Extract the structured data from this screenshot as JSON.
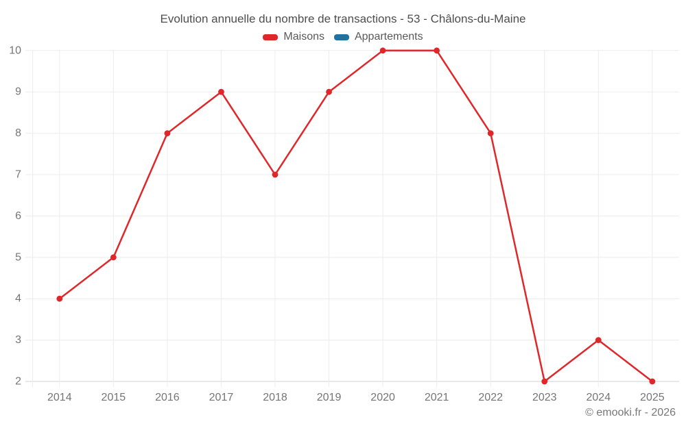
{
  "chart_data": {
    "type": "line",
    "title": "Evolution annuelle du nombre de transactions - 53 - Châlons-du-Maine",
    "categories": [
      "2014",
      "2015",
      "2016",
      "2017",
      "2018",
      "2019",
      "2020",
      "2021",
      "2022",
      "2023",
      "2024",
      "2025"
    ],
    "series": [
      {
        "name": "Maisons",
        "color": "#e02629",
        "values": [
          4,
          5,
          8,
          9,
          7,
          9,
          10,
          10,
          8,
          2,
          3,
          2
        ]
      },
      {
        "name": "Appartements",
        "color": "#1f73a3",
        "values": []
      }
    ],
    "xlabel": "",
    "ylabel": "",
    "ylim": [
      2,
      10
    ],
    "yticks": [
      2,
      3,
      4,
      5,
      6,
      7,
      8,
      9,
      10
    ],
    "grid": true,
    "legend_position": "top"
  },
  "footer": {
    "credit": "© emooki.fr - 2026"
  },
  "colors": {
    "grid_line": "#ececec",
    "axis_line": "#d2d2d2",
    "tick_text": "#757575",
    "title_text": "#4d4d4d",
    "legend_text": "#595959",
    "credit_text": "#787878"
  }
}
